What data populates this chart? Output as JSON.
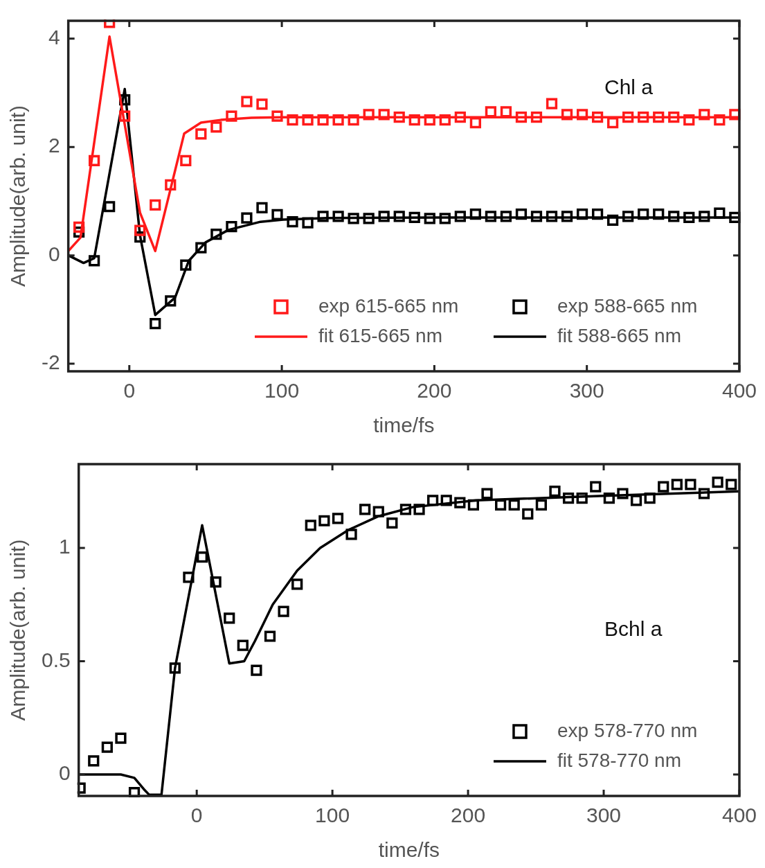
{
  "chart_data": [
    {
      "type": "scatter",
      "xlabel": "time/fs",
      "ylabel": "Amplitude(arb. unit)",
      "xlim": [
        -40,
        400
      ],
      "ylim": [
        -2.14,
        4.33
      ],
      "xticks": [
        0,
        100,
        200,
        300,
        400
      ],
      "yticks": [
        -2,
        0,
        2,
        4
      ],
      "grid": false,
      "legend": "bottom right",
      "annotations": [
        "Chl a"
      ],
      "series": [
        {
          "name": "exp 615-665 nm",
          "marker": "square",
          "color": "#ff1a1a",
          "x": [
            -33,
            -23,
            -13,
            -3,
            7,
            17,
            27,
            37,
            47,
            57,
            67,
            77,
            87,
            97,
            107,
            117,
            127,
            137,
            147,
            157,
            167,
            177,
            187,
            197,
            207,
            217,
            227,
            237,
            247,
            257,
            267,
            277,
            287,
            297,
            307,
            317,
            327,
            337,
            347,
            357,
            367,
            377,
            387,
            397
          ],
          "values": [
            0.52,
            1.75,
            4.3,
            2.57,
            0.46,
            0.93,
            1.3,
            1.75,
            2.24,
            2.37,
            2.57,
            2.84,
            2.79,
            2.57,
            2.5,
            2.5,
            2.5,
            2.5,
            2.5,
            2.6,
            2.6,
            2.55,
            2.5,
            2.5,
            2.5,
            2.55,
            2.45,
            2.65,
            2.65,
            2.55,
            2.55,
            2.8,
            2.6,
            2.6,
            2.55,
            2.45,
            2.55,
            2.55,
            2.55,
            2.55,
            2.5,
            2.6,
            2.5,
            2.6
          ]
        },
        {
          "name": "fit 615-665 nm",
          "type": "line",
          "marker": "none",
          "color": "#ff1a1a",
          "x": [
            -40,
            -32,
            -13,
            7,
            17,
            36,
            47,
            60,
            80,
            100,
            200,
            400
          ],
          "values": [
            0.08,
            0.33,
            4.04,
            0.79,
            0.08,
            2.25,
            2.45,
            2.5,
            2.54,
            2.55,
            2.55,
            2.55
          ]
        },
        {
          "name": "exp 588-665 nm",
          "marker": "square",
          "color": "#000000",
          "x": [
            -33,
            -23,
            -13,
            -3,
            7,
            17,
            27,
            37,
            47,
            57,
            67,
            77,
            87,
            97,
            107,
            117,
            127,
            137,
            147,
            157,
            167,
            177,
            187,
            197,
            207,
            217,
            227,
            237,
            247,
            257,
            267,
            277,
            287,
            297,
            307,
            317,
            327,
            337,
            347,
            357,
            367,
            377,
            387,
            397
          ],
          "values": [
            0.43,
            -0.1,
            0.9,
            2.87,
            0.34,
            -1.26,
            -0.84,
            -0.18,
            0.14,
            0.39,
            0.53,
            0.69,
            0.88,
            0.75,
            0.62,
            0.6,
            0.72,
            0.72,
            0.68,
            0.68,
            0.72,
            0.72,
            0.7,
            0.68,
            0.68,
            0.72,
            0.76,
            0.72,
            0.72,
            0.76,
            0.72,
            0.72,
            0.72,
            0.76,
            0.76,
            0.65,
            0.72,
            0.76,
            0.76,
            0.72,
            0.7,
            0.72,
            0.78,
            0.7
          ]
        },
        {
          "name": "fit 588-665 nm",
          "type": "line",
          "marker": "none",
          "color": "#000000",
          "x": [
            -40,
            -30,
            -23,
            -3,
            7,
            17,
            30,
            39,
            50,
            65,
            86,
            101,
            130,
            200,
            400
          ],
          "values": [
            0,
            -0.14,
            -0.05,
            3.07,
            0.37,
            -1.1,
            -0.78,
            -0.1,
            0.24,
            0.47,
            0.62,
            0.66,
            0.69,
            0.7,
            0.7
          ]
        }
      ]
    },
    {
      "type": "scatter",
      "xlabel": "time/fs",
      "ylabel": "Amplitude(arb. unit)",
      "xlim": [
        -87,
        400
      ],
      "ylim": [
        -0.095,
        1.37
      ],
      "xticks": [
        0,
        100,
        200,
        300,
        400
      ],
      "yticks": [
        0,
        0.5,
        1
      ],
      "grid": false,
      "legend": "bottom right",
      "annotations": [
        "Bchl a"
      ],
      "series": [
        {
          "name": "exp 578-770 nm",
          "marker": "square",
          "color": "#000000",
          "x": [
            -86,
            -76,
            -66,
            -56,
            -46,
            -16,
            -6,
            4,
            14,
            24,
            34,
            44,
            54,
            64,
            74,
            84,
            94,
            104,
            114,
            124,
            134,
            144,
            154,
            164,
            174,
            184,
            194,
            204,
            214,
            224,
            234,
            244,
            254,
            264,
            274,
            284,
            294,
            304,
            314,
            324,
            334,
            344,
            354,
            364,
            374,
            384,
            394
          ],
          "values": [
            -0.06,
            0.06,
            0.12,
            0.16,
            -0.08,
            0.47,
            0.87,
            0.96,
            0.85,
            0.69,
            0.57,
            0.46,
            0.61,
            0.72,
            0.84,
            1.1,
            1.12,
            1.13,
            1.06,
            1.17,
            1.16,
            1.11,
            1.17,
            1.17,
            1.21,
            1.21,
            1.2,
            1.19,
            1.24,
            1.19,
            1.19,
            1.15,
            1.19,
            1.25,
            1.22,
            1.22,
            1.27,
            1.22,
            1.24,
            1.21,
            1.22,
            1.27,
            1.28,
            1.28,
            1.24,
            1.29,
            1.28
          ]
        },
        {
          "name": "fit 578-770 nm",
          "type": "line",
          "marker": "none",
          "color": "#000000",
          "x": [
            -87,
            -56,
            -46,
            -39,
            -35,
            -26,
            -16,
            4,
            24,
            35,
            43,
            56,
            74,
            91,
            112,
            134,
            159,
            206,
            300,
            400
          ],
          "values": [
            0,
            0,
            -0.015,
            -0.065,
            -0.09,
            -0.09,
            0.47,
            1.1,
            0.49,
            0.5,
            0.59,
            0.75,
            0.9,
            1.0,
            1.08,
            1.14,
            1.18,
            1.21,
            1.23,
            1.25
          ]
        }
      ]
    }
  ]
}
